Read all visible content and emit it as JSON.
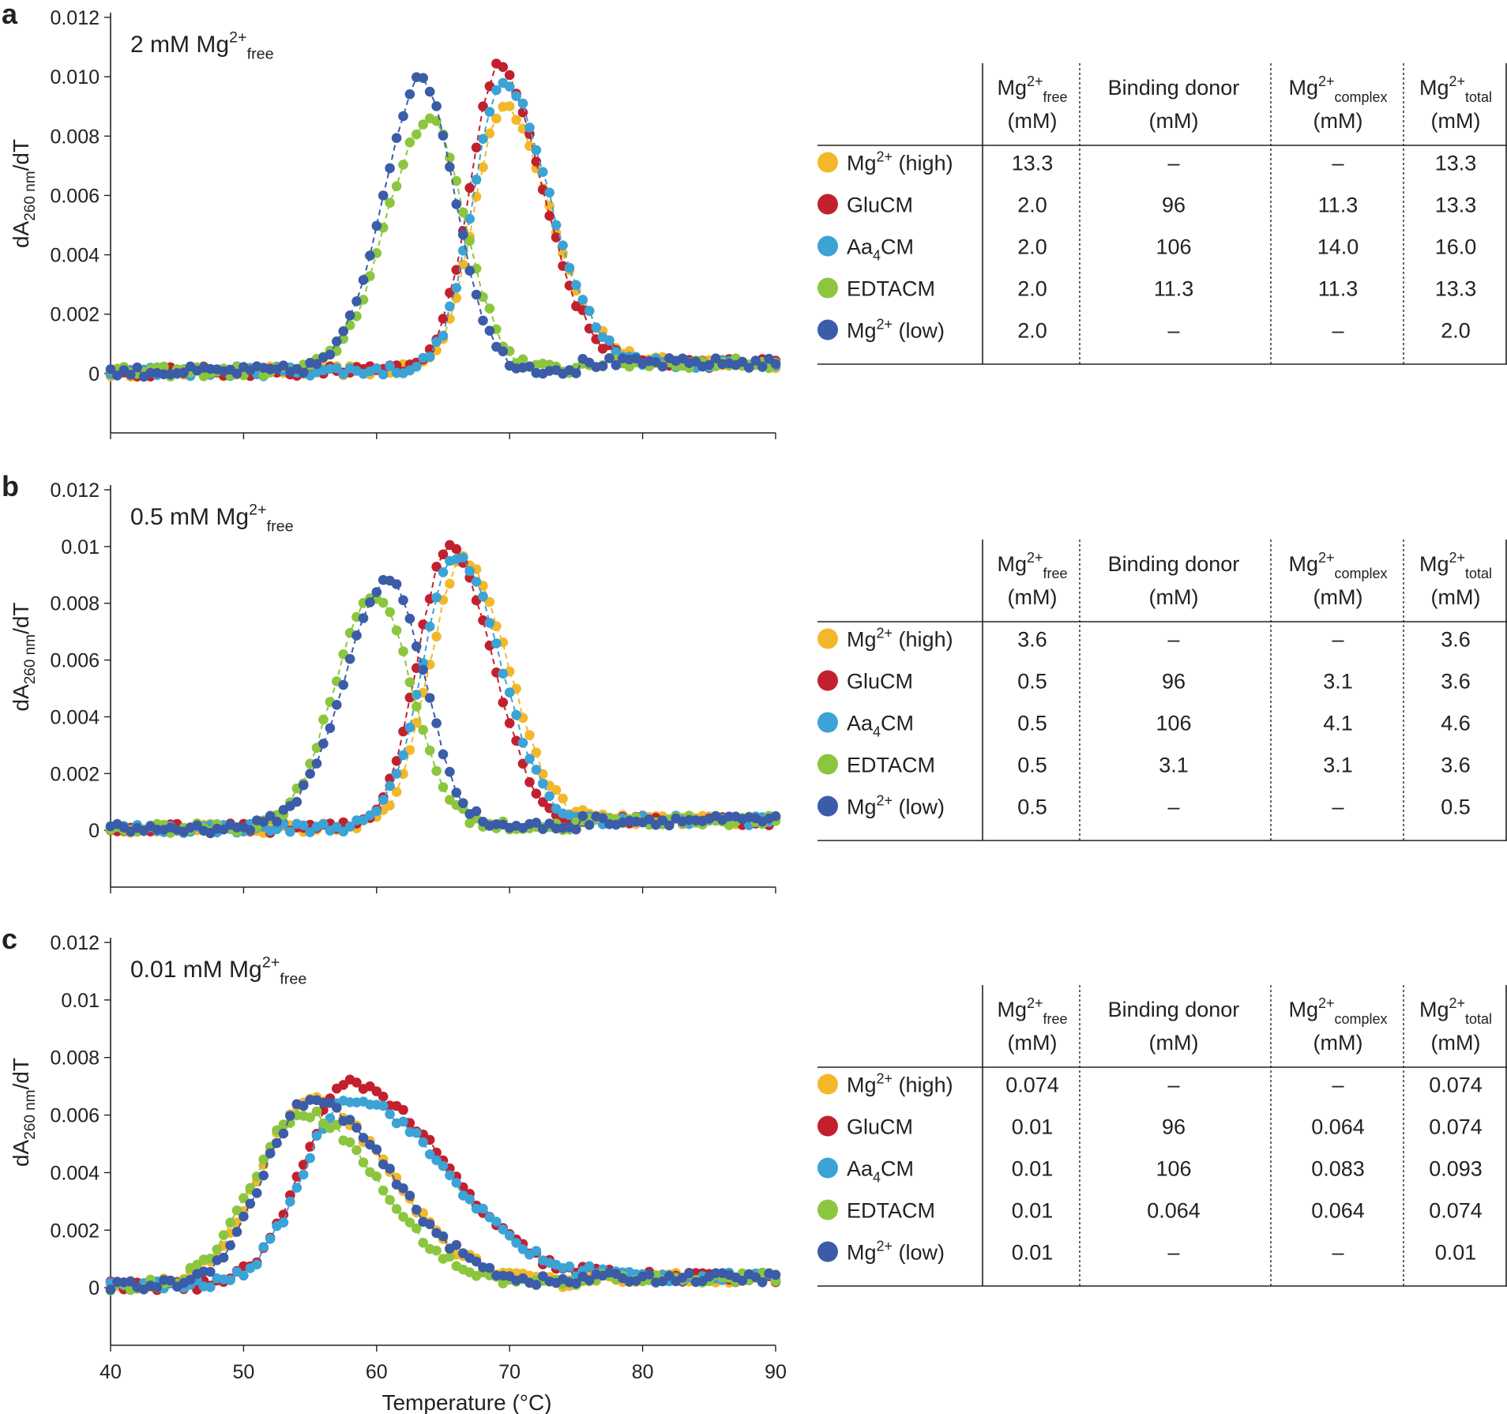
{
  "x_axis_label": "Temperature (°C)",
  "x_ticks": [
    "40",
    "50",
    "60",
    "70",
    "80",
    "90"
  ],
  "colors": {
    "Mg_high": "#F3B82A",
    "GluCM": "#C3202E",
    "Aa4CM": "#3BA3D6",
    "EDTACM": "#8CC63F",
    "Mg_low": "#3B5CA8"
  },
  "table_header": {
    "col1": {
      "main": "Mg",
      "sup": "2+",
      "sub": "free",
      "unit": "(mM)"
    },
    "col2": {
      "main": "Binding donor",
      "unit": "(mM)"
    },
    "col3": {
      "main": "Mg",
      "sup": "2+",
      "sub": "complex",
      "unit": "(mM)"
    },
    "col4": {
      "main": "Mg",
      "sup": "2+",
      "sub": "total",
      "unit": "(mM)"
    }
  },
  "row_labels": [
    {
      "key": "Mg_high",
      "main": "Mg",
      "sup": "2+",
      "rest": " (high)"
    },
    {
      "key": "GluCM",
      "main": "GluCM",
      "sup": "",
      "rest": ""
    },
    {
      "key": "Aa4CM",
      "main": "Aa",
      "sub": "4",
      "rest": "CM"
    },
    {
      "key": "EDTACM",
      "main": "EDTACM",
      "sup": "",
      "rest": ""
    },
    {
      "key": "Mg_low",
      "main": "Mg",
      "sup": "2+",
      "rest": " (low)"
    }
  ],
  "chart_data": [
    {
      "type": "scatter",
      "panel": "a",
      "condition": {
        "prefix": "2 mM Mg",
        "sup": "2+",
        "sub": "free"
      },
      "ylabel": {
        "main": "dA",
        "sub": "260 nm",
        "rest": "/dT"
      },
      "y_ticks": [
        "0",
        "0.002",
        "0.004",
        "0.006",
        "0.008",
        "0.010",
        "0.012"
      ],
      "ylim": [
        -0.002,
        0.012
      ],
      "xlim": [
        40,
        90
      ],
      "series": [
        {
          "key": "Mg_high",
          "name": "Mg2+ (high)",
          "peaks": [
            {
              "center": 69.5,
              "height": 0.0088,
              "wl": 2.2,
              "wr": 3.6
            }
          ]
        },
        {
          "key": "GluCM",
          "name": "GluCM",
          "peaks": [
            {
              "center": 69.2,
              "height": 0.0102,
              "wl": 2.2,
              "wr": 3.3
            }
          ]
        },
        {
          "key": "Aa4CM",
          "name": "Aa4CM",
          "peaks": [
            {
              "center": 69.6,
              "height": 0.0097,
              "wl": 2.3,
              "wr": 3.4
            }
          ]
        },
        {
          "key": "EDTACM",
          "name": "EDTACM",
          "peaks": [
            {
              "center": 64.0,
              "height": 0.0085,
              "wl": 3.2,
              "wr": 2.6
            }
          ]
        },
        {
          "key": "Mg_low",
          "name": "Mg2+ (low)",
          "peaks": [
            {
              "center": 63.4,
              "height": 0.0098,
              "wl": 2.9,
              "wr": 2.5
            }
          ]
        }
      ],
      "table": [
        [
          "13.3",
          "–",
          "–",
          "13.3"
        ],
        [
          "2.0",
          "96",
          "11.3",
          "13.3"
        ],
        [
          "2.0",
          "106",
          "14.0",
          "16.0"
        ],
        [
          "2.0",
          "11.3",
          "11.3",
          "13.3"
        ],
        [
          "2.0",
          "–",
          "–",
          "2.0"
        ]
      ]
    },
    {
      "type": "scatter",
      "panel": "b",
      "condition": {
        "prefix": "0.5 mM Mg",
        "sup": "2+",
        "sub": "free"
      },
      "ylabel": {
        "main": "dA",
        "sub": "260 nm",
        "rest": "/dT"
      },
      "y_ticks": [
        "0",
        "0.002",
        "0.004",
        "0.006",
        "0.008",
        "0.01",
        "0.012"
      ],
      "ylim": [
        -0.002,
        0.012
      ],
      "xlim": [
        40,
        90
      ],
      "series": [
        {
          "key": "Mg_high",
          "name": "Mg2+ (high)",
          "peaks": [
            {
              "center": 66.5,
              "height": 0.0094,
              "wl": 2.5,
              "wr": 3.4
            }
          ]
        },
        {
          "key": "GluCM",
          "name": "GluCM",
          "peaks": [
            {
              "center": 65.5,
              "height": 0.0099,
              "wl": 2.4,
              "wr": 3.2
            }
          ]
        },
        {
          "key": "Aa4CM",
          "name": "Aa4CM",
          "peaks": [
            {
              "center": 66.0,
              "height": 0.0096,
              "wl": 2.5,
              "wr": 3.3
            }
          ]
        },
        {
          "key": "EDTACM",
          "name": "EDTACM",
          "peaks": [
            {
              "center": 59.8,
              "height": 0.0082,
              "wl": 3.0,
              "wr": 2.8
            }
          ]
        },
        {
          "key": "Mg_low",
          "name": "Mg2+ (low)",
          "peaks": [
            {
              "center": 61.0,
              "height": 0.0087,
              "wl": 3.4,
              "wr": 2.6
            }
          ]
        }
      ],
      "table": [
        [
          "3.6",
          "–",
          "–",
          "3.6"
        ],
        [
          "0.5",
          "96",
          "3.1",
          "3.6"
        ],
        [
          "0.5",
          "106",
          "4.1",
          "4.6"
        ],
        [
          "0.5",
          "3.1",
          "3.1",
          "3.6"
        ],
        [
          "0.5",
          "–",
          "–",
          "0.5"
        ]
      ]
    },
    {
      "type": "scatter",
      "panel": "c",
      "condition": {
        "prefix": "0.01 mM Mg",
        "sup": "2+",
        "sub": "free"
      },
      "ylabel": {
        "main": "dA",
        "sub": "260 nm",
        "rest": "/dT"
      },
      "y_ticks": [
        "0",
        "0.002",
        "0.004",
        "0.006",
        "0.008",
        "0.01",
        "0.012"
      ],
      "ylim": [
        -0.002,
        0.012
      ],
      "xlim": [
        40,
        90
      ],
      "series": [
        {
          "key": "Mg_high",
          "name": "Mg2+ (high)",
          "peaks": [
            {
              "center": 55.0,
              "height": 0.0064,
              "wl": 3.8,
              "wr": 6.0
            }
          ]
        },
        {
          "key": "GluCM",
          "name": "GluCM",
          "peaks": [
            {
              "center": 58.0,
              "height": 0.007,
              "wl": 3.5,
              "wr": 7.0
            }
          ]
        },
        {
          "key": "Aa4CM",
          "name": "Aa4CM",
          "peaks": [
            {
              "center": 58.0,
              "height": 0.0065,
              "wl": 3.5,
              "wr": 7.2
            }
          ]
        },
        {
          "key": "EDTACM",
          "name": "EDTACM",
          "peaks": [
            {
              "center": 54.5,
              "height": 0.006,
              "wl": 3.8,
              "wr": 5.5
            }
          ]
        },
        {
          "key": "Mg_low",
          "name": "Mg2+ (low)",
          "peaks": [
            {
              "center": 55.0,
              "height": 0.0064,
              "wl": 3.5,
              "wr": 6.0
            }
          ]
        }
      ],
      "table": [
        [
          "0.074",
          "–",
          "–",
          "0.074"
        ],
        [
          "0.01",
          "96",
          "0.064",
          "0.074"
        ],
        [
          "0.01",
          "106",
          "0.083",
          "0.093"
        ],
        [
          "0.01",
          "0.064",
          "0.064",
          "0.074"
        ],
        [
          "0.01",
          "–",
          "–",
          "0.01"
        ]
      ]
    }
  ]
}
